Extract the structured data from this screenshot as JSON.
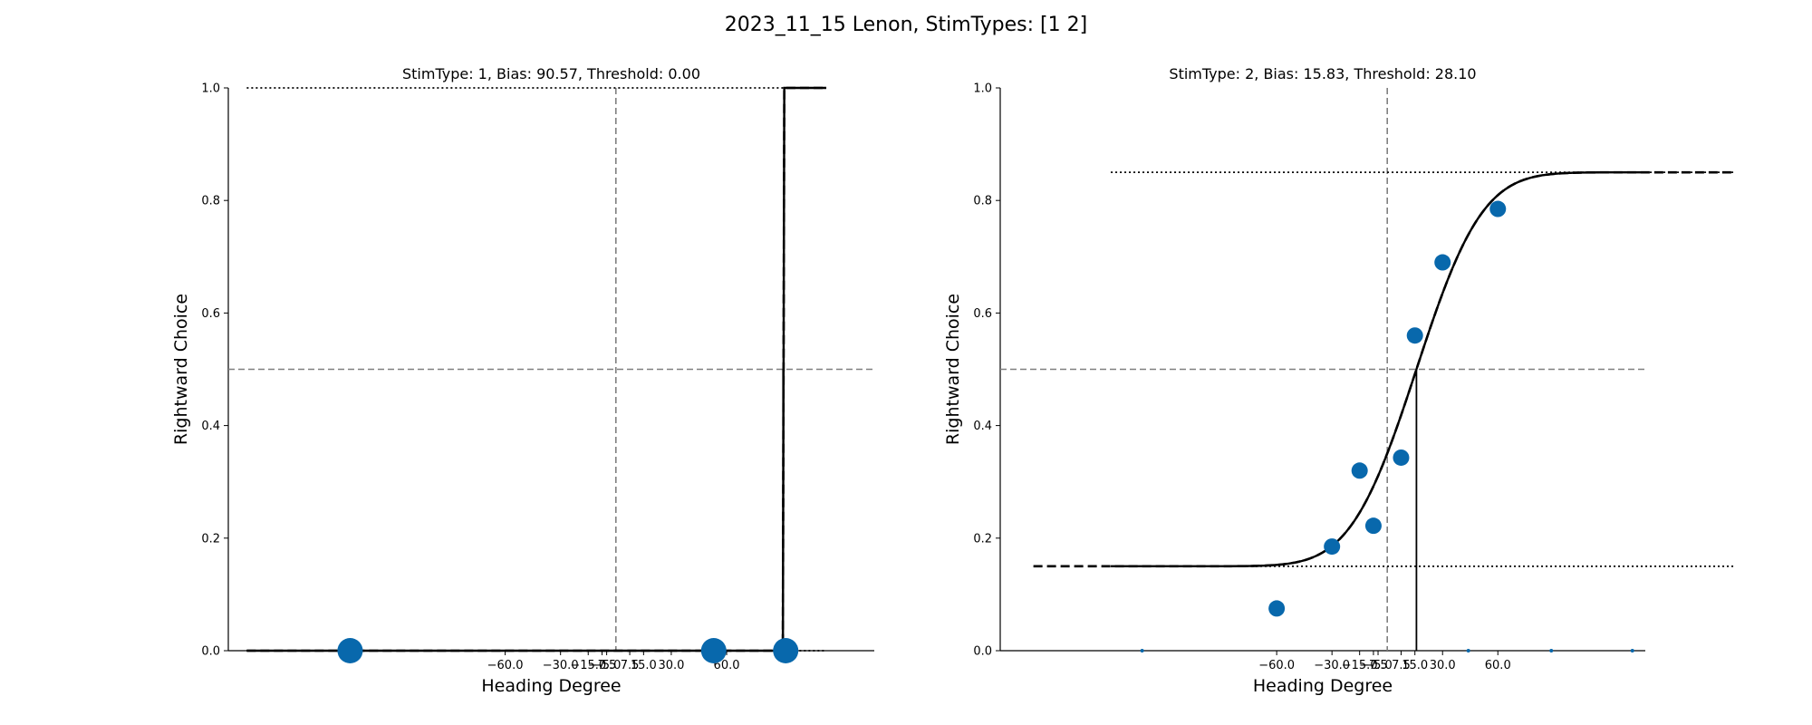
{
  "figure": {
    "title": "2023_11_15 Lenon, StimTypes: [1 2]"
  },
  "colors": {
    "marker": "#0868ac",
    "fit": "#000000",
    "refline": "#808080"
  },
  "chart_data": [
    {
      "type": "scatter",
      "title": "StimType: 1, Bias: 90.57, Threshold: 0.00",
      "xlabel": "Heading Degree",
      "ylabel": "Rightward Choice",
      "xlim": [
        -210,
        140
      ],
      "ylim": [
        0,
        1.0
      ],
      "xticks": [
        -60.0,
        -30.0,
        -15.0,
        -7.5,
        -5.0,
        7.5,
        15.0,
        30.0,
        60.0
      ],
      "xtick_labels": [
        "−60.0",
        "−30.0",
        "−15.0",
        "−7.5",
        "−5.0",
        "7.5",
        "15.0",
        "30.0",
        "60.0"
      ],
      "yticks": [
        0.0,
        0.2,
        0.4,
        0.6,
        0.8,
        1.0
      ],
      "ytick_labels": [
        "0.0",
        "0.2",
        "0.4",
        "0.6",
        "0.8",
        "1.0"
      ],
      "points": [
        {
          "x": -144,
          "y": 0.0,
          "r": 14
        },
        {
          "x": 53,
          "y": 0.0,
          "r": 14
        },
        {
          "x": 92,
          "y": 0.0,
          "r": 14
        }
      ],
      "bias": 90.57,
      "threshold": 0.0,
      "fit": {
        "guess": 0.0,
        "lapse": 0.0,
        "mu": 90.57,
        "sigma": 0.0
      },
      "fit_range_solid": [
        -200,
        114
      ],
      "fit_range_dashed": [
        -200,
        114
      ],
      "upper_asymptote": 1.0,
      "lower_asymptote": 0.0,
      "asymptote_range": [
        -200,
        114
      ],
      "hline_y": 0.5,
      "vline_x": 0.0,
      "grid": false
    },
    {
      "type": "scatter",
      "title": "StimType: 2, Bias: 15.83, Threshold: 28.10",
      "xlabel": "Heading Degree",
      "ylabel": "Rightward Choice",
      "xlim": [
        -210,
        140
      ],
      "ylim": [
        0,
        1.0
      ],
      "xticks": [
        -60.0,
        -30.0,
        -15.0,
        -7.5,
        -5.0,
        7.5,
        15.0,
        30.0,
        60.0
      ],
      "xtick_labels": [
        "−60.0",
        "−30.0",
        "−15.0",
        "−7.5",
        "−5.0",
        "7.5",
        "15.0",
        "30.0",
        "60.0"
      ],
      "yticks": [
        0.0,
        0.2,
        0.4,
        0.6,
        0.8,
        1.0
      ],
      "ytick_labels": [
        "0.0",
        "0.2",
        "0.4",
        "0.6",
        "0.8",
        "1.0"
      ],
      "points": [
        {
          "x": -60.0,
          "y": 0.075,
          "r": 9
        },
        {
          "x": -30.0,
          "y": 0.185,
          "r": 9
        },
        {
          "x": -15.0,
          "y": 0.32,
          "r": 9
        },
        {
          "x": -7.5,
          "y": 0.222,
          "r": 9
        },
        {
          "x": 7.5,
          "y": 0.343,
          "r": 9
        },
        {
          "x": 15.0,
          "y": 0.56,
          "r": 9
        },
        {
          "x": 30.0,
          "y": 0.69,
          "r": 9
        },
        {
          "x": 60.0,
          "y": 0.785,
          "r": 9
        },
        {
          "x": -133,
          "y": 0.0,
          "r": 2
        },
        {
          "x": 44,
          "y": 0.0,
          "r": 2
        },
        {
          "x": 89,
          "y": 0.0,
          "r": 2
        },
        {
          "x": 133,
          "y": 0.0,
          "r": 2
        }
      ],
      "bias": 15.83,
      "threshold": 28.1,
      "fit": {
        "guess": 0.15,
        "lapse": 0.15,
        "mu": 15.83,
        "sigma": 28.1
      },
      "fit_range_solid": [
        -150,
        142
      ],
      "fit_range_dashed": [
        -192,
        188
      ],
      "upper_asymptote": 0.85,
      "lower_asymptote": 0.15,
      "asymptote_range": [
        -150,
        188
      ],
      "hline_y": 0.5,
      "vline_x": 0.0,
      "grid": false
    }
  ]
}
